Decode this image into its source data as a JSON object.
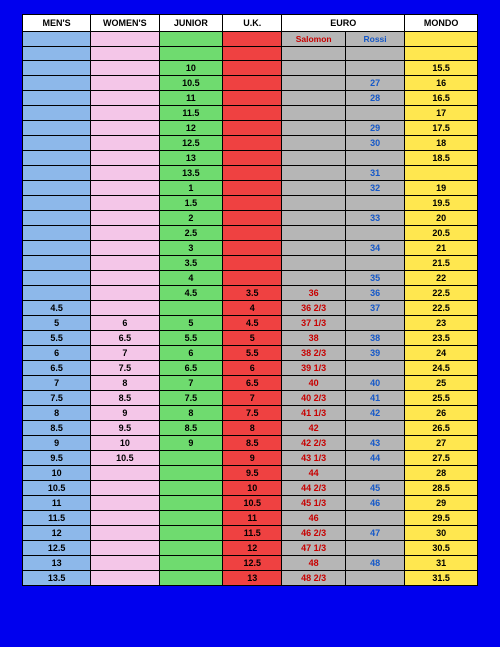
{
  "table": {
    "type": "table",
    "background_color": "#0000ee",
    "columns": [
      {
        "key": "men",
        "label": "MEN'S",
        "bg": "#8db8ea",
        "text": "#000000",
        "cls": "c-men"
      },
      {
        "key": "women",
        "label": "WOMEN'S",
        "bg": "#f4c6e8",
        "text": "#000000",
        "cls": "c-women"
      },
      {
        "key": "junior",
        "label": "JUNIOR",
        "bg": "#6fdb6f",
        "text": "#000000",
        "cls": "c-jr"
      },
      {
        "key": "uk",
        "label": "U.K.",
        "bg": "#ef4141",
        "text": "#000000",
        "cls": "c-uk"
      },
      {
        "key": "salomon",
        "label": "Salomon",
        "header": "EURO",
        "bg": "#b6b6b6",
        "text": "#c80000",
        "cls": "c-sal"
      },
      {
        "key": "rossi",
        "label": "Rossi",
        "header": "EURO",
        "bg": "#b6b6b6",
        "text": "#1558c8",
        "cls": "c-ros"
      },
      {
        "key": "mondo",
        "label": "MONDO",
        "bg": "#ffe74f",
        "text": "#000000",
        "cls": "c-mondo"
      }
    ],
    "header": {
      "men": "MEN'S",
      "women": "WOMEN'S",
      "junior": "JUNIOR",
      "uk": "U.K.",
      "euro": "EURO",
      "mondo": "MONDO"
    },
    "subheader": {
      "salomon": "Salomon",
      "rossi": "Rossi"
    },
    "rows": [
      {
        "men": "",
        "women": "",
        "junior": "",
        "uk": "",
        "salomon": "",
        "rossi": "",
        "mondo": ""
      },
      {
        "men": "",
        "women": "",
        "junior": "10",
        "uk": "",
        "salomon": "",
        "rossi": "",
        "mondo": "15.5"
      },
      {
        "men": "",
        "women": "",
        "junior": "10.5",
        "uk": "",
        "salomon": "",
        "rossi": "27",
        "mondo": "16"
      },
      {
        "men": "",
        "women": "",
        "junior": "11",
        "uk": "",
        "salomon": "",
        "rossi": "28",
        "mondo": "16.5"
      },
      {
        "men": "",
        "women": "",
        "junior": "11.5",
        "uk": "",
        "salomon": "",
        "rossi": "",
        "mondo": "17"
      },
      {
        "men": "",
        "women": "",
        "junior": "12",
        "uk": "",
        "salomon": "",
        "rossi": "29",
        "mondo": "17.5"
      },
      {
        "men": "",
        "women": "",
        "junior": "12.5",
        "uk": "",
        "salomon": "",
        "rossi": "30",
        "mondo": "18"
      },
      {
        "men": "",
        "women": "",
        "junior": "13",
        "uk": "",
        "salomon": "",
        "rossi": "",
        "mondo": "18.5"
      },
      {
        "men": "",
        "women": "",
        "junior": "13.5",
        "uk": "",
        "salomon": "",
        "rossi": "31",
        "mondo": ""
      },
      {
        "men": "",
        "women": "",
        "junior": "1",
        "uk": "",
        "salomon": "",
        "rossi": "32",
        "mondo": "19"
      },
      {
        "men": "",
        "women": "",
        "junior": "1.5",
        "uk": "",
        "salomon": "",
        "rossi": "",
        "mondo": "19.5"
      },
      {
        "men": "",
        "women": "",
        "junior": "2",
        "uk": "",
        "salomon": "",
        "rossi": "33",
        "mondo": "20"
      },
      {
        "men": "",
        "women": "",
        "junior": "2.5",
        "uk": "",
        "salomon": "",
        "rossi": "",
        "mondo": "20.5"
      },
      {
        "men": "",
        "women": "",
        "junior": "3",
        "uk": "",
        "salomon": "",
        "rossi": "34",
        "mondo": "21"
      },
      {
        "men": "",
        "women": "",
        "junior": "3.5",
        "uk": "",
        "salomon": "",
        "rossi": "",
        "mondo": "21.5"
      },
      {
        "men": "",
        "women": "",
        "junior": "4",
        "uk": "",
        "salomon": "",
        "rossi": "35",
        "mondo": "22"
      },
      {
        "men": "",
        "women": "",
        "junior": "4.5",
        "uk": "3.5",
        "salomon": "36",
        "rossi": "36",
        "mondo": "22.5"
      },
      {
        "men": "4.5",
        "women": "",
        "junior": "",
        "uk": "4",
        "salomon": "36 2/3",
        "rossi": "37",
        "mondo": "22.5"
      },
      {
        "men": "5",
        "women": "6",
        "junior": "5",
        "uk": "4.5",
        "salomon": "37 1/3",
        "rossi": "",
        "mondo": "23"
      },
      {
        "men": "5.5",
        "women": "6.5",
        "junior": "5.5",
        "uk": "5",
        "salomon": "38",
        "rossi": "38",
        "mondo": "23.5"
      },
      {
        "men": "6",
        "women": "7",
        "junior": "6",
        "uk": "5.5",
        "salomon": "38 2/3",
        "rossi": "39",
        "mondo": "24"
      },
      {
        "men": "6.5",
        "women": "7.5",
        "junior": "6.5",
        "uk": "6",
        "salomon": "39 1/3",
        "rossi": "",
        "mondo": "24.5"
      },
      {
        "men": "7",
        "women": "8",
        "junior": "7",
        "uk": "6.5",
        "salomon": "40",
        "rossi": "40",
        "mondo": "25"
      },
      {
        "men": "7.5",
        "women": "8.5",
        "junior": "7.5",
        "uk": "7",
        "salomon": "40 2/3",
        "rossi": "41",
        "mondo": "25.5"
      },
      {
        "men": "8",
        "women": "9",
        "junior": "8",
        "uk": "7.5",
        "salomon": "41 1/3",
        "rossi": "42",
        "mondo": "26"
      },
      {
        "men": "8.5",
        "women": "9.5",
        "junior": "8.5",
        "uk": "8",
        "salomon": "42",
        "rossi": "",
        "mondo": "26.5"
      },
      {
        "men": "9",
        "women": "10",
        "junior": "9",
        "uk": "8.5",
        "salomon": "42 2/3",
        "rossi": "43",
        "mondo": "27"
      },
      {
        "men": "9.5",
        "women": "10.5",
        "junior": "",
        "uk": "9",
        "salomon": "43 1/3",
        "rossi": "44",
        "mondo": "27.5"
      },
      {
        "men": "10",
        "women": "",
        "junior": "",
        "uk": "9.5",
        "salomon": "44",
        "rossi": "",
        "mondo": "28"
      },
      {
        "men": "10.5",
        "women": "",
        "junior": "",
        "uk": "10",
        "salomon": "44 2/3",
        "rossi": "45",
        "mondo": "28.5"
      },
      {
        "men": "11",
        "women": "",
        "junior": "",
        "uk": "10.5",
        "salomon": "45 1/3",
        "rossi": "46",
        "mondo": "29"
      },
      {
        "men": "11.5",
        "women": "",
        "junior": "",
        "uk": "11",
        "salomon": "46",
        "rossi": "",
        "mondo": "29.5"
      },
      {
        "men": "12",
        "women": "",
        "junior": "",
        "uk": "11.5",
        "salomon": "46 2/3",
        "rossi": "47",
        "mondo": "30"
      },
      {
        "men": "12.5",
        "women": "",
        "junior": "",
        "uk": "12",
        "salomon": "47 1/3",
        "rossi": "",
        "mondo": "30.5"
      },
      {
        "men": "13",
        "women": "",
        "junior": "",
        "uk": "12.5",
        "salomon": "48",
        "rossi": "48",
        "mondo": "31"
      },
      {
        "men": "13.5",
        "women": "",
        "junior": "",
        "uk": "13",
        "salomon": "48 2/3",
        "rossi": "",
        "mondo": "31.5"
      }
    ],
    "col_widths_pct": [
      15,
      15,
      14,
      13,
      14,
      13,
      16
    ],
    "font_size_pt": 9,
    "border_color": "#000000"
  }
}
